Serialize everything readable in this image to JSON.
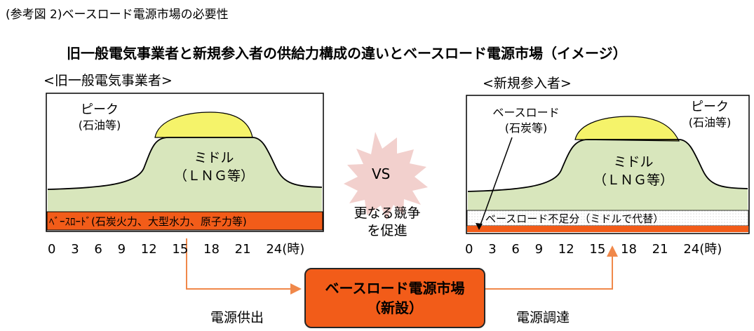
{
  "caption": "(参考図 2)ベースロード電源市場の必要性",
  "subtitle": "旧一般電気事業者と新規参入者の供給力構成の違いとベースロード電源市場（イメージ）",
  "left_group": {
    "title": "<旧一般電気事業者>",
    "peak": [
      "ピーク",
      "(石油等)"
    ],
    "middle": [
      "ミドル",
      "（ＬＮＧ等）"
    ],
    "base": "ﾍﾞｰｽﾛｰﾄﾞ(石炭火力、大型水力、原子力等)"
  },
  "right_group": {
    "title": "<新規参入者>",
    "baseload": [
      "ベースロード",
      "(石炭等)"
    ],
    "peak": [
      "ピーク",
      "(石油等)"
    ],
    "middle": [
      "ミドル",
      "（ＬＮＧ等）"
    ],
    "shortfall": "ベースロード不足分（ミドルで代替）"
  },
  "axis_ticks": [
    "0",
    "3",
    "6",
    "9",
    "12",
    "15",
    "18",
    "21",
    "24(時)"
  ],
  "vs_text": "VS",
  "competition": [
    "更なる競争",
    "を促進"
  ],
  "market": [
    "ベースロード電源市場",
    "（新設）"
  ],
  "supply_label": "電源供出",
  "procure_label": "電源調達",
  "colors": {
    "peak": "#f5f36a",
    "middle": "#d8e6bc",
    "base": "#f25c19",
    "starburst": "#f2d0cd",
    "arrow": "#f0884a"
  }
}
